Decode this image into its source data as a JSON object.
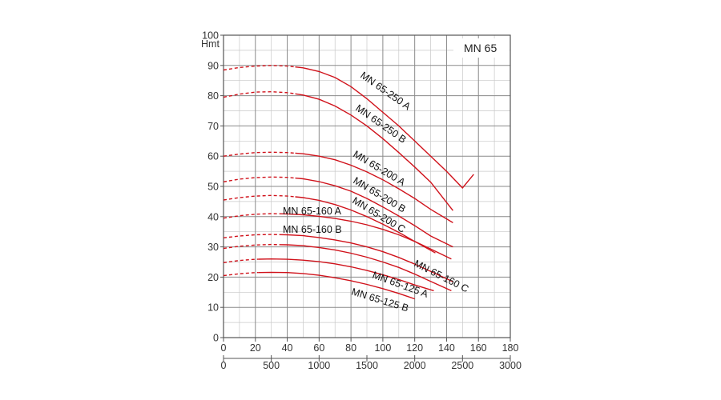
{
  "colors": {
    "curve": "#d0121b",
    "grid_major": "#8a8a8a",
    "grid_minor": "#c8c8c8",
    "frame": "#555555"
  },
  "chart_data": {
    "type": "line",
    "title": "MN 65",
    "ylabel": "Hmt",
    "ylim": [
      0,
      100
    ],
    "xlim": [
      0,
      180
    ],
    "x2lim": [
      0,
      3000
    ],
    "grid": true,
    "y_ticks": [
      "0",
      "10",
      "20",
      "30",
      "40",
      "50",
      "60",
      "70",
      "80",
      "90",
      "100"
    ],
    "x_ticks": [
      "0",
      "20",
      "40",
      "60",
      "80",
      "100",
      "120",
      "140",
      "160",
      "180"
    ],
    "x2_ticks": [
      "0",
      "500",
      "1000",
      "1500",
      "2000",
      "2500",
      "3000"
    ],
    "series": [
      {
        "name": "MN 65-250 A",
        "dashed_until": 45,
        "x": [
          0,
          10,
          20,
          30,
          40,
          50,
          60,
          70,
          80,
          90,
          100,
          110,
          120,
          130,
          140,
          150,
          157
        ],
        "y": [
          88.5,
          89.3,
          89.8,
          90,
          89.8,
          89.2,
          88,
          86,
          83,
          79,
          74.5,
          70,
          65,
          60,
          55,
          49.5,
          54
        ]
      },
      {
        "name": "MN 65-250 B",
        "dashed_until": 45,
        "x": [
          0,
          10,
          20,
          30,
          40,
          50,
          60,
          70,
          80,
          90,
          100,
          110,
          120,
          130,
          144
        ],
        "y": [
          79.5,
          80.5,
          81.2,
          81.3,
          81,
          80.2,
          78.8,
          76.6,
          73.6,
          70,
          65.8,
          61.2,
          56.4,
          51.4,
          42
        ]
      },
      {
        "name": "MN 65-200 A",
        "dashed_until": 45,
        "x": [
          0,
          10,
          20,
          30,
          40,
          50,
          60,
          70,
          80,
          90,
          100,
          110,
          120,
          130,
          144
        ],
        "y": [
          60,
          60.7,
          61.2,
          61.3,
          61.2,
          60.8,
          60,
          58.8,
          57,
          54.8,
          52.2,
          49.2,
          46,
          42.4,
          38
        ]
      },
      {
        "name": "MN 65-200 B",
        "dashed_until": 45,
        "x": [
          0,
          10,
          20,
          30,
          40,
          50,
          60,
          70,
          80,
          90,
          100,
          110,
          120,
          130,
          144
        ],
        "y": [
          51.5,
          52.4,
          52.9,
          53.1,
          53,
          52.5,
          51.6,
          50.2,
          48.4,
          46,
          43.2,
          40.2,
          37,
          33.6,
          30
        ]
      },
      {
        "name": "MN 65-200 C",
        "dashed_until": 45,
        "x": [
          0,
          10,
          20,
          30,
          40,
          50,
          60,
          70,
          80,
          90,
          100,
          110,
          120,
          133
        ],
        "y": [
          45.5,
          46.3,
          46.8,
          47,
          46.8,
          46.3,
          45.4,
          44,
          42.2,
          40,
          37.5,
          34.8,
          31.8,
          28
        ]
      },
      {
        "name": "MN 65-160 A",
        "dashed_until": 35,
        "x": [
          0,
          10,
          20,
          30,
          40,
          50,
          60,
          70,
          80,
          90,
          100,
          110,
          120,
          130,
          143
        ],
        "y": [
          39.5,
          40.3,
          40.8,
          41,
          40.9,
          40.6,
          40.1,
          39.4,
          38.5,
          37.3,
          35.8,
          34,
          31.8,
          29.3,
          26
        ]
      },
      {
        "name": "MN 65-160 B",
        "dashed_until": 35,
        "x": [
          0,
          10,
          20,
          30,
          40,
          50,
          60,
          70,
          80,
          90,
          100,
          110,
          120,
          130,
          144
        ],
        "y": [
          33,
          33.6,
          34,
          34.1,
          34,
          33.7,
          33.1,
          32.3,
          31.3,
          30,
          28.4,
          26.5,
          24.3,
          21.9,
          18.5
        ]
      },
      {
        "name": "MN 65-160 C",
        "dashed_until": 35,
        "x": [
          0,
          10,
          20,
          30,
          40,
          50,
          60,
          70,
          80,
          90,
          100,
          110,
          120,
          130,
          143
        ],
        "y": [
          29.5,
          30.2,
          30.6,
          30.8,
          30.7,
          30.4,
          29.8,
          29,
          27.9,
          26.6,
          25,
          23.2,
          21,
          18.6,
          15.5
        ]
      },
      {
        "name": "MN 65-125 A",
        "dashed_until": 22,
        "x": [
          0,
          10,
          20,
          30,
          40,
          50,
          60,
          70,
          80,
          90,
          100,
          110,
          120,
          132
        ],
        "y": [
          24.8,
          25.5,
          25.9,
          26,
          25.9,
          25.6,
          25.1,
          24.4,
          23.4,
          22.2,
          20.8,
          19.2,
          17.4,
          15.5
        ]
      },
      {
        "name": "MN 65-125 B",
        "dashed_until": 22,
        "x": [
          0,
          10,
          20,
          30,
          40,
          50,
          60,
          70,
          80,
          90,
          100,
          110,
          120
        ],
        "y": [
          20.5,
          21.1,
          21.5,
          21.6,
          21.5,
          21.2,
          20.6,
          19.8,
          18.8,
          17.6,
          16.2,
          14.6,
          12.8
        ]
      }
    ]
  }
}
